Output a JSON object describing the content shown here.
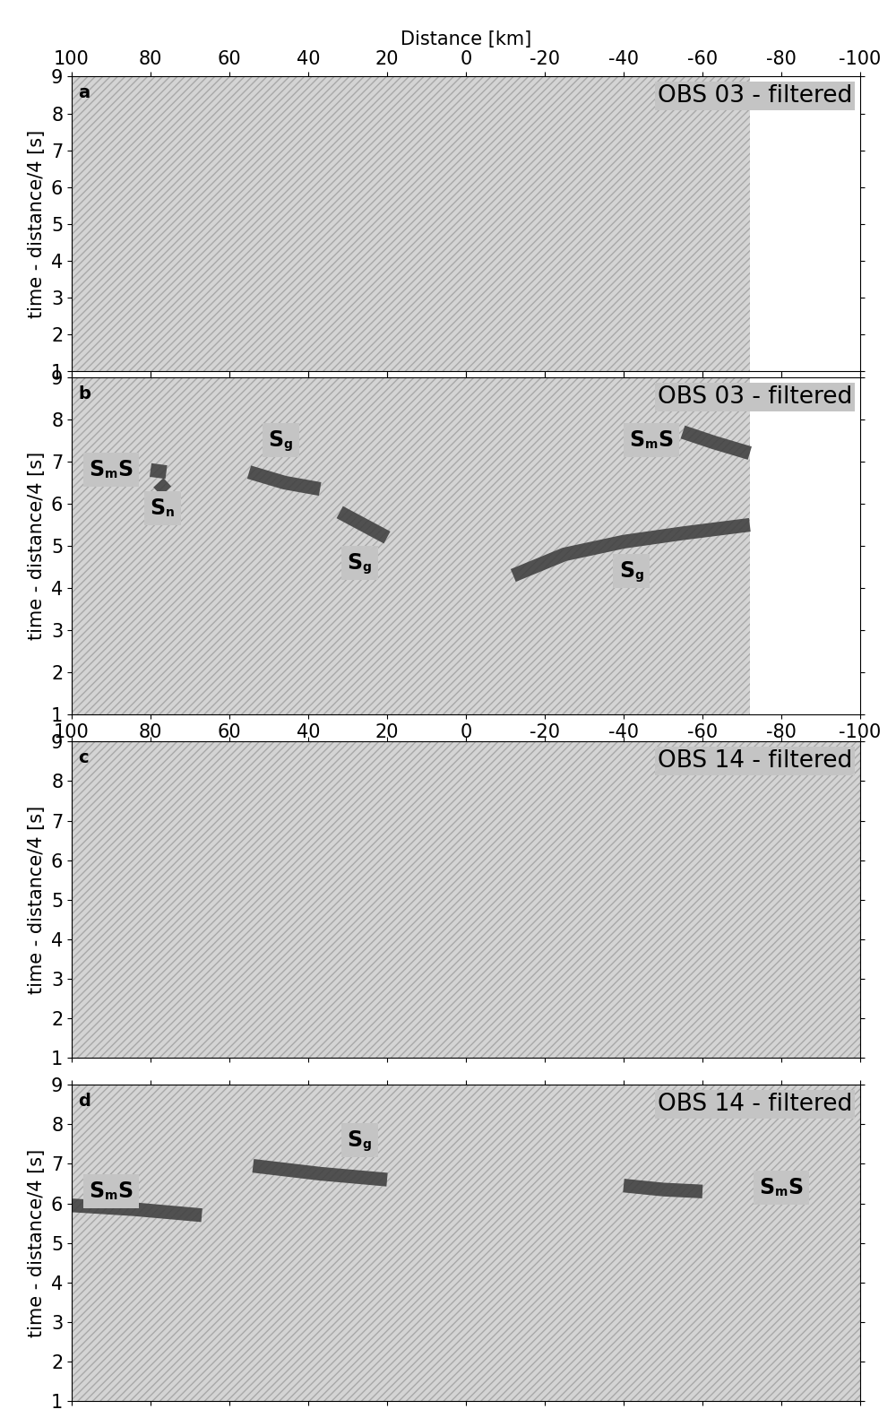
{
  "chart_data": [
    {
      "type": "record_section",
      "panel": "a",
      "title": "OBS 03 - filtered",
      "xlabel": "Distance [km]",
      "ylabel": "time - distance/4 [s]",
      "xlim": [
        100,
        -100
      ],
      "xticks": [
        100,
        80,
        60,
        40,
        20,
        0,
        -20,
        -40,
        -60,
        -80,
        -100
      ],
      "ylim": [
        1,
        9
      ],
      "yticks": [
        1,
        2,
        3,
        4,
        5,
        6,
        7,
        8,
        9
      ],
      "coverage": [
        100,
        -72
      ],
      "picks": [],
      "labels": []
    },
    {
      "type": "record_section",
      "panel": "b",
      "title": "OBS 03 - filtered",
      "ylabel": "time - distance/4 [s]",
      "xlim": [
        100,
        -100
      ],
      "xticks": [
        100,
        80,
        60,
        40,
        20,
        0,
        -20,
        -40,
        -60,
        -80,
        -100
      ],
      "ylim": [
        1,
        9
      ],
      "yticks": [
        1,
        2,
        3,
        4,
        5,
        6,
        7,
        8,
        9
      ],
      "coverage": [
        100,
        -72
      ],
      "picks": [
        {
          "x": [
            80,
            76
          ],
          "y": [
            6.8,
            6.75
          ]
        },
        {
          "x": [
            78,
            76
          ],
          "y": [
            6.5,
            6.3
          ]
        },
        {
          "x": [
            55,
            46,
            37
          ],
          "y": [
            6.75,
            6.5,
            6.35
          ]
        },
        {
          "x": [
            32,
            26,
            20
          ],
          "y": [
            5.8,
            5.5,
            5.2
          ]
        },
        {
          "x": [
            -55,
            -63,
            -72
          ],
          "y": [
            7.7,
            7.45,
            7.2
          ]
        },
        {
          "x": [
            -12,
            -25,
            -40,
            -55,
            -72
          ],
          "y": [
            4.3,
            4.8,
            5.1,
            5.3,
            5.5
          ]
        }
      ],
      "labels": [
        {
          "x": 90,
          "y": 6.8,
          "parts": [
            "S",
            "m",
            "S"
          ]
        },
        {
          "x": 77,
          "y": 5.9,
          "parts": [
            "S",
            "n"
          ]
        },
        {
          "x": 47,
          "y": 7.5,
          "parts": [
            "S",
            "g"
          ]
        },
        {
          "x": 27,
          "y": 4.6,
          "parts": [
            "S",
            "g"
          ]
        },
        {
          "x": -47,
          "y": 7.5,
          "parts": [
            "S",
            "m",
            "S"
          ]
        },
        {
          "x": -42,
          "y": 4.4,
          "parts": [
            "S",
            "g"
          ]
        }
      ]
    },
    {
      "type": "record_section",
      "panel": "c",
      "title": "OBS 14 - filtered",
      "ylabel": "time - distance/4 [s]",
      "tick_labels": "y",
      "xlim": [
        100,
        -100
      ],
      "xticks": [
        100,
        80,
        60,
        40,
        20,
        0,
        -20,
        -40,
        -60,
        -80,
        -100
      ],
      "ylim": [
        1,
        9
      ],
      "yticks": [
        1,
        2,
        3,
        4,
        5,
        6,
        7,
        8,
        9
      ],
      "coverage": [
        100,
        -100
      ],
      "picks": [],
      "labels": []
    },
    {
      "type": "record_section",
      "panel": "d",
      "title": "OBS 14 - filtered",
      "ylabel": "time - distance/4 [s]",
      "tick_labels": "y",
      "xlim": [
        100,
        -100
      ],
      "xticks": [
        100,
        80,
        60,
        40,
        20,
        0,
        -20,
        -40,
        -60,
        -80,
        -100
      ],
      "ylim": [
        1,
        9
      ],
      "yticks": [
        1,
        2,
        3,
        4,
        5,
        6,
        7,
        8,
        9
      ],
      "coverage": [
        100,
        -100
      ],
      "picks": [
        {
          "x": [
            100,
            84,
            67
          ],
          "y": [
            5.95,
            5.85,
            5.7
          ]
        },
        {
          "x": [
            54,
            37,
            20
          ],
          "y": [
            6.95,
            6.75,
            6.6
          ]
        },
        {
          "x": [
            -40,
            -50,
            -60
          ],
          "y": [
            6.45,
            6.35,
            6.3
          ]
        }
      ],
      "labels": [
        {
          "x": 90,
          "y": 6.3,
          "parts": [
            "S",
            "m",
            "S"
          ]
        },
        {
          "x": 27,
          "y": 7.6,
          "parts": [
            "S",
            "g"
          ]
        },
        {
          "x": -80,
          "y": 6.4,
          "parts": [
            "S",
            "m",
            "S"
          ]
        }
      ]
    }
  ]
}
